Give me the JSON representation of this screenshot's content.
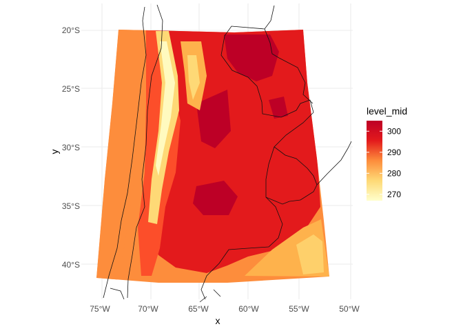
{
  "chart_data": {
    "type": "heatmap",
    "title": "",
    "xlabel": "x",
    "ylabel": "y",
    "x_ticks": [
      "75°W",
      "70°W",
      "65°W",
      "60°W",
      "55°W",
      "50°W"
    ],
    "x_tick_values": [
      -75,
      -70,
      -65,
      -60,
      -55,
      -50
    ],
    "y_ticks": [
      "20°S",
      "25°S",
      "30°S",
      "35°S",
      "40°S"
    ],
    "y_tick_values": [
      -20,
      -25,
      -30,
      -35,
      -40
    ],
    "xlim": [
      -76,
      -49.8
    ],
    "ylim": [
      -42.5,
      -17.5
    ],
    "grid": true,
    "legend": {
      "title": "level_mid",
      "position": "right",
      "labels": [
        "300",
        "290",
        "280",
        "270"
      ],
      "values": [
        300,
        290,
        280,
        270
      ],
      "range": [
        267,
        305
      ]
    },
    "colors": {
      "low": "#ffffcc",
      "mid_low": "#fed976",
      "mid": "#fd8d3c",
      "mid_high": "#e31a1c",
      "high": "#bd0026"
    }
  }
}
